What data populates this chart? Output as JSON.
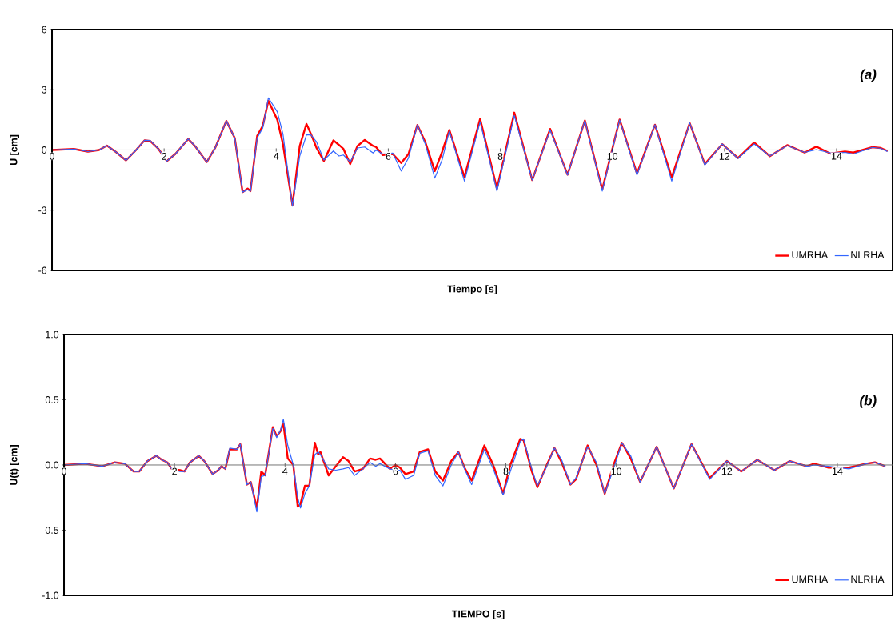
{
  "chart_data": [
    {
      "type": "line",
      "xlabel": "Tiempo [s]",
      "ylabel": "U [cm]",
      "xlim": [
        0,
        15
      ],
      "ylim": [
        -6,
        6
      ],
      "xticks": [
        0,
        2,
        4,
        6,
        8,
        10,
        12,
        14
      ],
      "yticks": [
        -6,
        -3,
        0,
        3,
        6
      ],
      "legend": "bottom right",
      "annotations": [
        "(a)"
      ],
      "x": [
        0,
        0.39,
        0.64,
        0.84,
        0.98,
        1.14,
        1.32,
        1.5,
        1.65,
        1.75,
        1.9,
        2.05,
        2.2,
        2.43,
        2.55,
        2.76,
        2.91,
        3.11,
        3.26,
        3.4,
        3.49,
        3.54,
        3.66,
        3.76,
        3.86,
        4.02,
        4.12,
        4.29,
        4.42,
        4.54,
        4.62,
        4.72,
        4.85,
        5.02,
        5.12,
        5.2,
        5.32,
        5.45,
        5.58,
        5.73,
        5.78,
        5.9,
        6.08,
        6.23,
        6.36,
        6.52,
        6.66,
        6.83,
        6.96,
        7.09,
        7.36,
        7.64,
        7.94,
        8.25,
        8.57,
        8.89,
        9.2,
        9.51,
        9.82,
        10.13,
        10.44,
        10.76,
        11.06,
        11.38,
        11.65,
        11.96,
        12.24,
        12.53,
        12.81,
        13.12,
        13.43,
        13.64,
        13.89,
        14.15,
        14.3,
        14.64,
        14.79,
        14.91
      ],
      "series": [
        {
          "name": "UMRHA",
          "color": "#ff0000",
          "values": [
            0,
            0.05,
            -0.08,
            0,
            0.22,
            -0.1,
            -0.52,
            0,
            0.48,
            0.45,
            0.05,
            -0.55,
            -0.2,
            0.55,
            0.2,
            -0.6,
            0.1,
            1.45,
            0.6,
            -2.1,
            -1.92,
            -2.05,
            0.7,
            1.2,
            2.45,
            1.5,
            0.3,
            -2.75,
            0.2,
            1.3,
            0.8,
            0.1,
            -0.55,
            0.48,
            0.25,
            0.05,
            -0.7,
            0.2,
            0.5,
            0.2,
            0.15,
            -0.25,
            -0.2,
            -0.65,
            -0.2,
            1.25,
            0.4,
            -1.05,
            -0.1,
            1.0,
            -1.35,
            1.55,
            -1.93,
            1.86,
            -1.5,
            1.05,
            -1.23,
            1.47,
            -1.97,
            1.52,
            -1.18,
            1.26,
            -1.36,
            1.34,
            -0.7,
            0.29,
            -0.4,
            0.37,
            -0.31,
            0.24,
            -0.13,
            0.17,
            -0.18,
            -0.08,
            -0.13,
            0.14,
            0.1,
            -0.05
          ]
        },
        {
          "name": "NLRHA",
          "color": "#3366ff",
          "values": [
            0,
            0.05,
            -0.08,
            0,
            0.22,
            -0.1,
            -0.52,
            0,
            0.48,
            0.47,
            0.05,
            -0.55,
            -0.2,
            0.55,
            0.2,
            -0.6,
            0.1,
            1.45,
            0.6,
            -2.1,
            -1.98,
            -2.05,
            0.6,
            1.1,
            2.6,
            1.9,
            0.8,
            -2.8,
            -0.3,
            0.75,
            0.75,
            0.4,
            -0.5,
            -0.05,
            -0.3,
            -0.25,
            -0.6,
            0.1,
            0.15,
            -0.15,
            0.0,
            -0.2,
            -0.15,
            -1.05,
            -0.4,
            1.25,
            0.3,
            -1.4,
            -0.5,
            0.95,
            -1.55,
            1.4,
            -2.05,
            1.72,
            -1.5,
            1.0,
            -1.25,
            1.47,
            -2.05,
            1.5,
            -1.25,
            1.26,
            -1.55,
            1.35,
            -0.75,
            0.3,
            -0.42,
            0.3,
            -0.3,
            0.22,
            -0.12,
            0.02,
            -0.15,
            -0.12,
            -0.2,
            0.13,
            0.08,
            -0.08
          ]
        }
      ]
    },
    {
      "type": "line",
      "xlabel": "TIEMPO [s]",
      "ylabel": "U(t) [cm]",
      "xlim": [
        0,
        15
      ],
      "ylim": [
        -1,
        1
      ],
      "xticks": [
        0,
        2,
        4,
        6,
        8,
        10,
        12,
        14
      ],
      "yticks": [
        {
          "value": -1,
          "label": "-1.0"
        },
        {
          "value": -0.5,
          "label": "-0.5"
        },
        {
          "value": 0,
          "label": "0.0"
        },
        {
          "value": 0.5,
          "label": "0.5"
        },
        {
          "value": 1,
          "label": "1.0"
        }
      ],
      "legend": "bottom right",
      "annotations": [
        "(b)"
      ],
      "x": [
        0,
        0.38,
        0.69,
        0.92,
        1.1,
        1.26,
        1.36,
        1.51,
        1.67,
        1.77,
        1.87,
        1.95,
        2.1,
        2.18,
        2.28,
        2.44,
        2.54,
        2.69,
        2.79,
        2.85,
        2.92,
        3.0,
        3.13,
        3.19,
        3.31,
        3.38,
        3.49,
        3.57,
        3.64,
        3.78,
        3.85,
        3.92,
        3.97,
        4.05,
        4.15,
        4.23,
        4.28,
        4.36,
        4.44,
        4.54,
        4.6,
        4.64,
        4.79,
        4.92,
        5.05,
        5.15,
        5.26,
        5.41,
        5.54,
        5.64,
        5.72,
        5.9,
        6.0,
        6.08,
        6.18,
        6.33,
        6.44,
        6.59,
        6.72,
        6.86,
        7.01,
        7.14,
        7.25,
        7.38,
        7.61,
        7.77,
        7.95,
        8.08,
        8.26,
        8.32,
        8.47,
        8.57,
        8.73,
        8.88,
        9.01,
        9.17,
        9.27,
        9.48,
        9.64,
        9.79,
        9.95,
        10.1,
        10.26,
        10.43,
        10.73,
        11.04,
        11.36,
        11.69,
        12.0,
        12.26,
        12.55,
        12.86,
        13.14,
        13.45,
        13.58,
        13.84,
        14.21,
        14.52,
        14.68,
        14.87
      ],
      "series": [
        {
          "name": "UMRHA",
          "color": "#ff0000",
          "values": [
            0,
            0.01,
            -0.01,
            0.02,
            0.01,
            -0.05,
            -0.05,
            0.03,
            0.07,
            0.04,
            0.02,
            -0.03,
            -0.04,
            -0.05,
            0.02,
            0.07,
            0.03,
            -0.07,
            -0.04,
            -0.01,
            -0.03,
            0.12,
            0.12,
            0.16,
            -0.15,
            -0.13,
            -0.33,
            -0.05,
            -0.08,
            0.29,
            0.22,
            0.26,
            0.32,
            0.05,
            0.0,
            -0.32,
            -0.3,
            -0.16,
            -0.16,
            0.17,
            0.08,
            0.1,
            -0.08,
            -0.01,
            0.06,
            0.03,
            -0.05,
            -0.03,
            0.05,
            0.04,
            0.05,
            -0.03,
            0.0,
            -0.02,
            -0.07,
            -0.05,
            0.1,
            0.12,
            -0.05,
            -0.12,
            0.03,
            0.1,
            -0.02,
            -0.12,
            0.15,
            0.0,
            -0.22,
            0.0,
            0.2,
            0.19,
            -0.05,
            -0.17,
            -0.01,
            0.13,
            0.02,
            -0.15,
            -0.11,
            0.15,
            0.0,
            -0.22,
            0.0,
            0.17,
            0.05,
            -0.13,
            0.14,
            -0.18,
            0.16,
            -0.1,
            0.03,
            -0.05,
            0.04,
            -0.04,
            0.03,
            -0.01,
            0.01,
            -0.02,
            -0.02,
            0.01,
            0.02,
            -0.01
          ]
        },
        {
          "name": "NLRHA",
          "color": "#3366ff",
          "values": [
            0,
            0.01,
            -0.01,
            0.02,
            0.01,
            -0.05,
            -0.05,
            0.03,
            0.07,
            0.04,
            0.02,
            -0.03,
            -0.05,
            -0.05,
            0.02,
            0.07,
            0.03,
            -0.07,
            -0.04,
            -0.01,
            -0.03,
            0.13,
            0.12,
            0.16,
            -0.15,
            -0.13,
            -0.36,
            -0.09,
            -0.08,
            0.28,
            0.21,
            0.27,
            0.35,
            0.15,
            0.0,
            -0.25,
            -0.33,
            -0.22,
            -0.16,
            0.08,
            0.1,
            0.08,
            -0.03,
            -0.04,
            -0.03,
            -0.02,
            -0.08,
            -0.03,
            0.02,
            -0.01,
            0.01,
            -0.03,
            -0.04,
            -0.04,
            -0.11,
            -0.08,
            0.09,
            0.11,
            -0.08,
            -0.16,
            0.0,
            0.1,
            -0.03,
            -0.15,
            0.12,
            -0.03,
            -0.23,
            -0.05,
            0.18,
            0.2,
            -0.03,
            -0.16,
            -0.02,
            0.13,
            0.04,
            -0.15,
            -0.1,
            0.14,
            0.02,
            -0.22,
            -0.03,
            0.17,
            0.07,
            -0.13,
            0.14,
            -0.18,
            0.16,
            -0.11,
            0.03,
            -0.05,
            0.04,
            -0.04,
            0.03,
            -0.01,
            0.0,
            -0.01,
            -0.03,
            0.01,
            0.02,
            -0.01
          ]
        }
      ]
    }
  ]
}
